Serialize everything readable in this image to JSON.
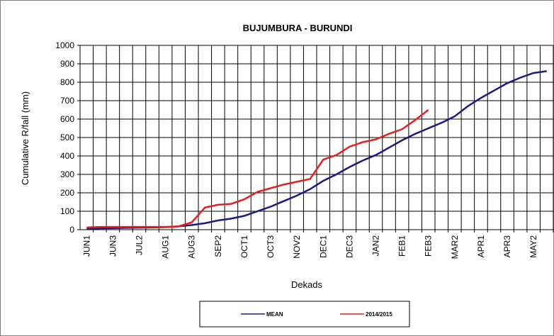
{
  "chart_data": {
    "type": "line",
    "title": "BUJUMBURA - BURUNDI",
    "x_label": "Dekads",
    "y_label": "Cumulative R/fall (mm)",
    "categories": [
      "JUN1",
      null,
      "JUN3",
      null,
      "JUL2",
      null,
      "AUG1",
      null,
      "AUG3",
      null,
      "SEP2",
      null,
      "OCT1",
      null,
      "OCT3",
      null,
      "NOV2",
      null,
      "DEC1",
      null,
      "DEC3",
      null,
      "JAN2",
      null,
      "FEB1",
      null,
      "FEB3",
      null,
      "MAR2",
      null,
      "APR1",
      null,
      "APR3",
      null,
      "MAY2",
      null
    ],
    "series": [
      {
        "name": "MEAN",
        "color": "#1a1a80",
        "values": [
          5,
          7,
          8,
          10,
          11,
          12,
          14,
          18,
          25,
          35,
          50,
          60,
          75,
          100,
          125,
          155,
          185,
          220,
          265,
          300,
          340,
          375,
          405,
          445,
          485,
          520,
          550,
          580,
          615,
          670,
          715,
          755,
          795,
          825,
          850,
          860
        ]
      },
      {
        "name": "2014/2015",
        "color": "#e32020",
        "values": [
          12,
          15,
          15,
          15,
          15,
          15,
          15,
          18,
          40,
          120,
          135,
          140,
          165,
          205,
          225,
          245,
          260,
          275,
          380,
          405,
          450,
          475,
          490,
          520,
          545,
          595,
          650,
          null,
          null,
          null,
          null,
          null,
          null,
          null,
          null,
          null
        ]
      }
    ],
    "ylim": [
      0,
      1000
    ],
    "yticks": [
      0,
      100,
      200,
      300,
      400,
      500,
      600,
      700,
      800,
      900,
      1000
    ],
    "grid": true
  }
}
